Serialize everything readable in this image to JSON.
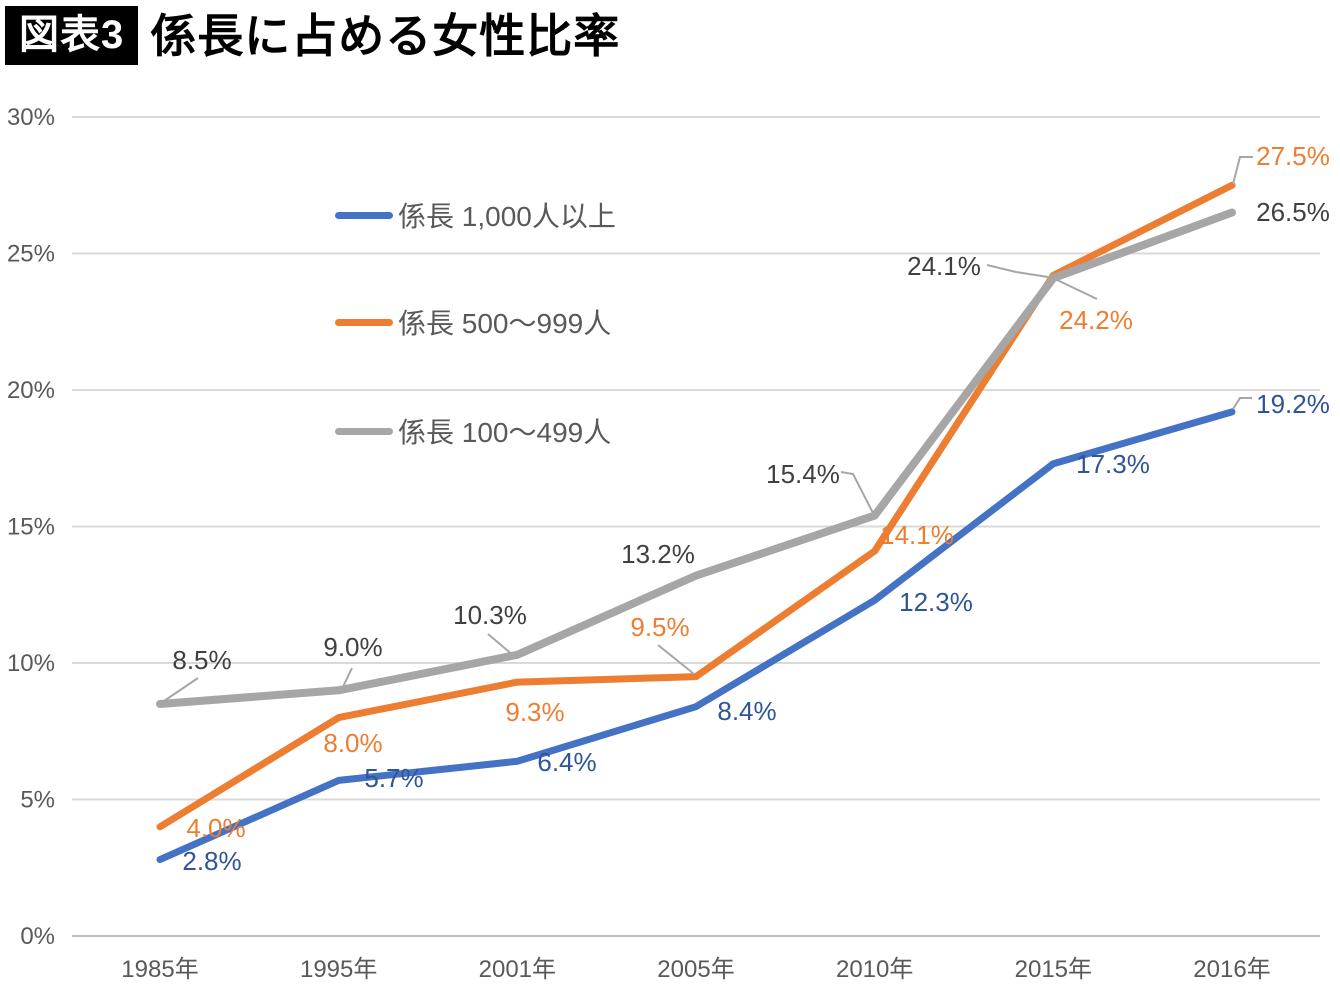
{
  "header": {
    "tag": "図表3",
    "title": "係長に占める女性比率"
  },
  "chart_data": {
    "type": "line",
    "categories": [
      "1985年",
      "1995年",
      "2001年",
      "2005年",
      "2010年",
      "2015年",
      "2016年"
    ],
    "series": [
      {
        "name": "係長 1,000人以上",
        "key": "kakaricho-1000-plus",
        "color": "#4472C4",
        "label_color": "#2F5597",
        "values": [
          2.8,
          5.7,
          6.4,
          8.4,
          12.3,
          17.3,
          19.2
        ],
        "labels": [
          "2.8%",
          "5.7%",
          "6.4%",
          "8.4%",
          "12.3%",
          "17.3%",
          "19.2%"
        ]
      },
      {
        "name": "係長 500〜999人",
        "key": "kakaricho-500-999",
        "color": "#ED7D31",
        "label_color": "#ED7D31",
        "values": [
          4.0,
          8.0,
          9.3,
          9.5,
          14.1,
          24.2,
          27.5
        ],
        "labels": [
          "4.0%",
          "8.0%",
          "9.3%",
          "9.5%",
          "14.1%",
          "24.2%",
          "27.5%"
        ]
      },
      {
        "name": "係長 100〜499人",
        "key": "kakaricho-100-499",
        "color": "#A6A6A6",
        "label_color": "#404040",
        "values": [
          8.5,
          9.0,
          10.3,
          13.2,
          15.4,
          24.1,
          26.5
        ],
        "labels": [
          "8.5%",
          "9.0%",
          "10.3%",
          "13.2%",
          "15.4%",
          "24.1%",
          "26.5%"
        ]
      }
    ],
    "ylim": [
      0,
      30
    ],
    "ytick_step": 5,
    "ytick_labels": [
      "0%",
      "5%",
      "10%",
      "15%",
      "20%",
      "25%",
      "30%"
    ],
    "grid": true,
    "gridline_color": "#D9D9D9",
    "axis_line_color": "#BFBFBF",
    "axis_text_color": "#595959",
    "leader_line_color": "#A6A6A6",
    "legend_position": "inside-top-left",
    "data_labels": true
  }
}
